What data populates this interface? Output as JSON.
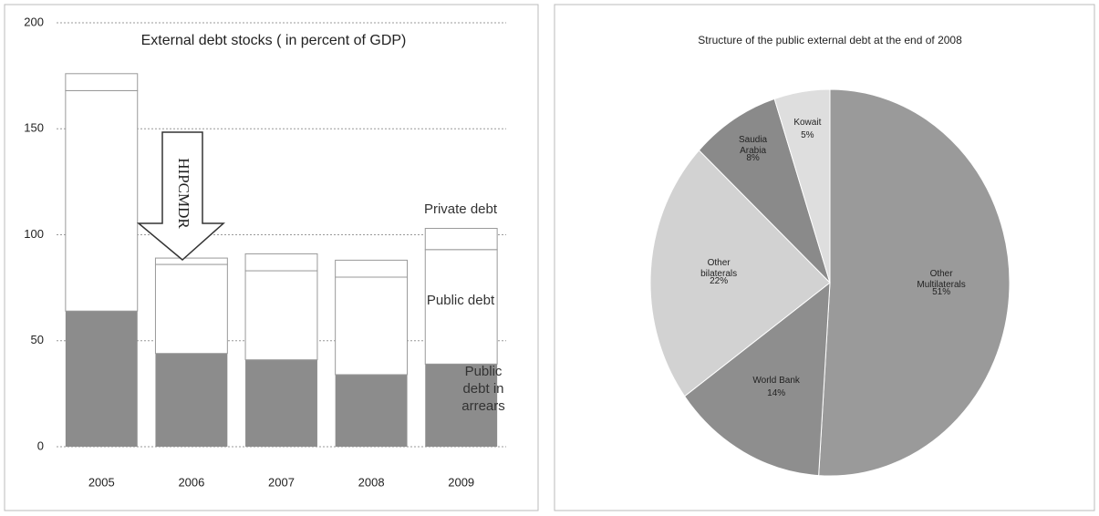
{
  "chart_data": [
    {
      "type": "bar",
      "stacked": true,
      "title": "External debt stocks ( in percent of GDP)",
      "categories": [
        "2005",
        "2006",
        "2007",
        "2008",
        "2009"
      ],
      "series": [
        {
          "name": "Public debt in arrears",
          "color": "#8c8c8c",
          "values": [
            64,
            44,
            41,
            34,
            39
          ]
        },
        {
          "name": "Public debt",
          "color": "#ffffff",
          "values": [
            104,
            42,
            42,
            46,
            54
          ]
        },
        {
          "name": "Private debt",
          "color": "#ffffff",
          "values": [
            8,
            3,
            8,
            8,
            10
          ]
        }
      ],
      "ylim": [
        0,
        200
      ],
      "yticks": [
        0,
        50,
        100,
        150,
        200
      ],
      "grid": true,
      "annotations": [
        "HIPCMDR"
      ]
    },
    {
      "type": "pie",
      "title": "Structure of the public external debt at the end of 2008",
      "categories": [
        "Other Multilaterals",
        "World Bank",
        "Other bilaterals",
        "Saudia Arabia",
        "Kowait"
      ],
      "values": [
        51,
        14,
        22,
        8,
        5
      ],
      "value_labels": [
        "51%",
        "14%",
        "22%",
        "8%",
        "5%"
      ],
      "colors": [
        "#9a9a9a",
        "#8e8e8e",
        "#d2d2d2",
        "#8a8a8a",
        "#dedede"
      ]
    }
  ]
}
